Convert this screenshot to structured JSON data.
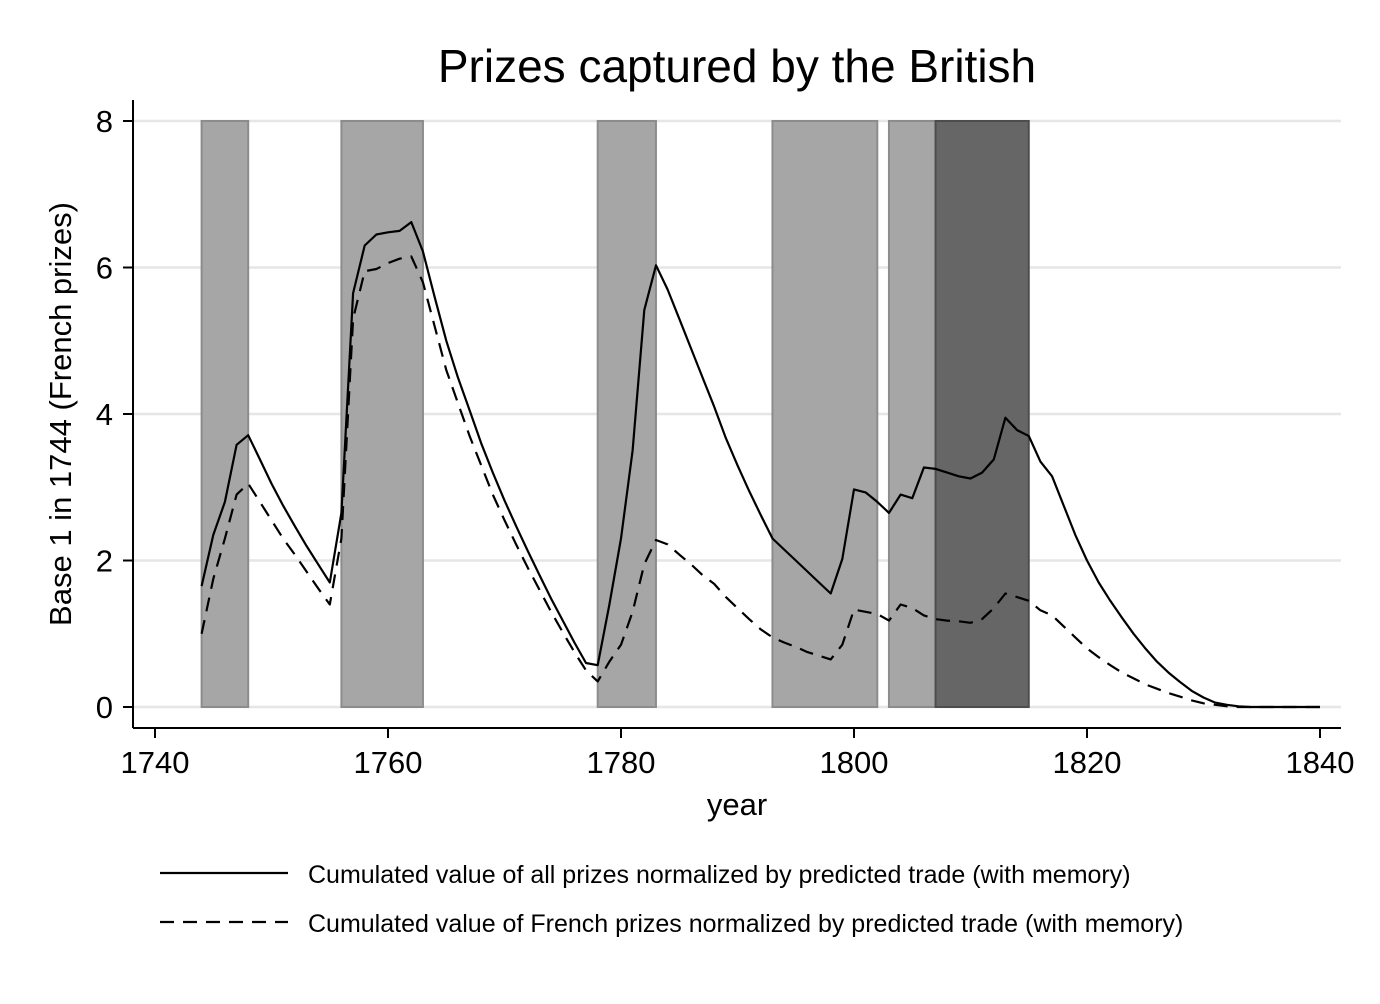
{
  "chart_data": {
    "type": "line",
    "title": "Prizes captured by the British",
    "xlabel": "year",
    "ylabel": "Base 1 in 1744 (French prizes)",
    "xlim": [
      1740,
      1840
    ],
    "ylim": [
      0,
      8
    ],
    "x_ticks": [
      1740,
      1760,
      1780,
      1800,
      1820,
      1840
    ],
    "y_ticks": [
      0,
      2,
      4,
      6,
      8
    ],
    "grid": "horizontal",
    "legend_position": "bottom",
    "shaded_periods": [
      {
        "start": 1744,
        "end": 1748,
        "color": "#a6a6a6"
      },
      {
        "start": 1756,
        "end": 1763,
        "color": "#a6a6a6"
      },
      {
        "start": 1778,
        "end": 1783,
        "color": "#a6a6a6"
      },
      {
        "start": 1793,
        "end": 1802,
        "color": "#a6a6a6"
      },
      {
        "start": 1803,
        "end": 1807,
        "color": "#a6a6a6"
      },
      {
        "start": 1807,
        "end": 1815,
        "color": "#666666"
      }
    ],
    "series": [
      {
        "name": "Cumulated value of all prizes normalized by predicted trade (with memory)",
        "style": "solid",
        "x": [
          1744,
          1745,
          1746,
          1747,
          1748,
          1749,
          1750,
          1751,
          1752,
          1753,
          1754,
          1755,
          1756,
          1757,
          1758,
          1759,
          1760,
          1761,
          1762,
          1763,
          1764,
          1765,
          1766,
          1767,
          1768,
          1769,
          1770,
          1771,
          1772,
          1773,
          1774,
          1775,
          1776,
          1777,
          1778,
          1779,
          1780,
          1781,
          1782,
          1783,
          1784,
          1785,
          1786,
          1787,
          1788,
          1789,
          1790,
          1791,
          1792,
          1793,
          1794,
          1795,
          1796,
          1797,
          1798,
          1799,
          1800,
          1801,
          1802,
          1803,
          1804,
          1805,
          1806,
          1807,
          1808,
          1809,
          1810,
          1811,
          1812,
          1813,
          1814,
          1815,
          1816,
          1817,
          1818,
          1819,
          1820,
          1821,
          1822,
          1823,
          1824,
          1825,
          1826,
          1827,
          1828,
          1829,
          1830,
          1831,
          1832,
          1833,
          1834,
          1835,
          1836,
          1837,
          1838,
          1839,
          1840
        ],
        "values": [
          1.65,
          2.35,
          2.8,
          3.58,
          3.71,
          3.38,
          3.05,
          2.75,
          2.47,
          2.2,
          1.95,
          1.7,
          2.65,
          5.65,
          6.3,
          6.45,
          6.48,
          6.5,
          6.62,
          6.22,
          5.6,
          5.0,
          4.5,
          4.05,
          3.6,
          3.2,
          2.82,
          2.47,
          2.13,
          1.8,
          1.48,
          1.18,
          0.88,
          0.6,
          0.57,
          1.4,
          2.3,
          3.5,
          5.42,
          6.03,
          5.7,
          5.3,
          4.9,
          4.5,
          4.1,
          3.67,
          3.3,
          2.95,
          2.62,
          2.3,
          2.15,
          2.0,
          1.85,
          1.7,
          1.55,
          2.02,
          2.97,
          2.93,
          2.8,
          2.65,
          2.9,
          2.85,
          3.27,
          3.25,
          3.2,
          3.15,
          3.12,
          3.2,
          3.38,
          3.95,
          3.78,
          3.7,
          3.35,
          3.15,
          2.75,
          2.35,
          2.0,
          1.7,
          1.45,
          1.22,
          1.0,
          0.8,
          0.62,
          0.47,
          0.34,
          0.22,
          0.13,
          0.06,
          0.03,
          0.01,
          0.0,
          0.0,
          0.0,
          0.0,
          0.0,
          0.0,
          0.0
        ],
        "color": "#000000"
      },
      {
        "name": "Cumulated value of French prizes normalized by predicted trade (with memory)",
        "style": "dashed",
        "x": [
          1744,
          1745,
          1746,
          1747,
          1748,
          1749,
          1750,
          1751,
          1752,
          1753,
          1754,
          1755,
          1756,
          1757,
          1758,
          1759,
          1760,
          1761,
          1762,
          1763,
          1764,
          1765,
          1766,
          1767,
          1768,
          1769,
          1770,
          1771,
          1772,
          1773,
          1774,
          1775,
          1776,
          1777,
          1778,
          1779,
          1780,
          1781,
          1782,
          1783,
          1784,
          1785,
          1786,
          1787,
          1788,
          1789,
          1790,
          1791,
          1792,
          1793,
          1794,
          1795,
          1796,
          1797,
          1798,
          1799,
          1800,
          1801,
          1802,
          1803,
          1804,
          1805,
          1806,
          1807,
          1808,
          1809,
          1810,
          1811,
          1812,
          1813,
          1814,
          1815,
          1816,
          1817,
          1818,
          1819,
          1820,
          1821,
          1822,
          1823,
          1824,
          1825,
          1826,
          1827,
          1828,
          1829,
          1830,
          1831,
          1832,
          1833,
          1834,
          1835,
          1836,
          1837,
          1838,
          1839,
          1840
        ],
        "values": [
          1.0,
          1.75,
          2.3,
          2.9,
          3.05,
          2.8,
          2.55,
          2.3,
          2.08,
          1.85,
          1.62,
          1.4,
          2.3,
          5.3,
          5.95,
          5.98,
          6.06,
          6.12,
          6.15,
          5.8,
          5.2,
          4.6,
          4.15,
          3.7,
          3.3,
          2.9,
          2.55,
          2.22,
          1.9,
          1.6,
          1.3,
          1.02,
          0.75,
          0.5,
          0.35,
          0.62,
          0.85,
          1.3,
          1.95,
          2.28,
          2.22,
          2.08,
          1.95,
          1.8,
          1.68,
          1.5,
          1.35,
          1.2,
          1.06,
          0.95,
          0.88,
          0.82,
          0.75,
          0.7,
          0.65,
          0.85,
          1.33,
          1.3,
          1.27,
          1.18,
          1.4,
          1.35,
          1.25,
          1.2,
          1.18,
          1.17,
          1.15,
          1.2,
          1.35,
          1.55,
          1.5,
          1.45,
          1.32,
          1.25,
          1.1,
          0.95,
          0.8,
          0.68,
          0.57,
          0.47,
          0.39,
          0.31,
          0.25,
          0.19,
          0.14,
          0.09,
          0.05,
          0.03,
          0.01,
          0.0,
          0.0,
          0.0,
          0.0,
          0.0,
          0.0,
          0.0,
          0.0
        ],
        "color": "#000000"
      }
    ]
  }
}
